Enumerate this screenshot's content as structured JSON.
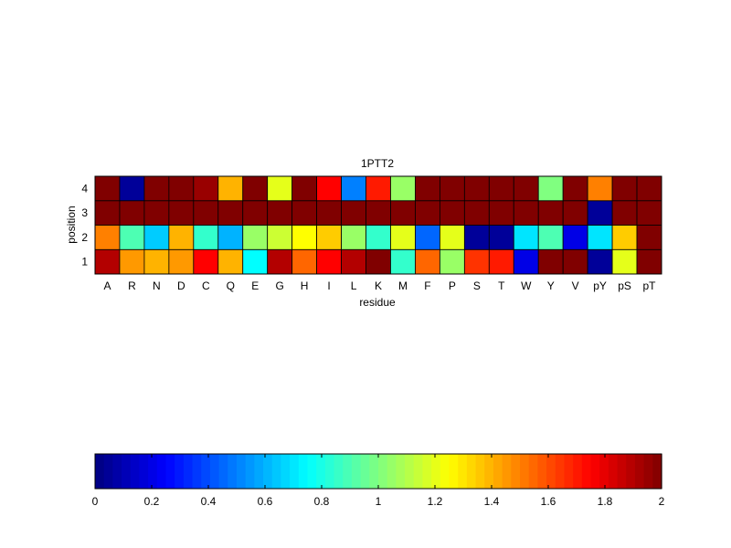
{
  "chart_data": {
    "type": "heatmap",
    "title": "1PTT2",
    "xlabel": "residue",
    "ylabel": "position",
    "x": [
      "A",
      "R",
      "N",
      "D",
      "C",
      "Q",
      "E",
      "G",
      "H",
      "I",
      "L",
      "K",
      "M",
      "F",
      "P",
      "S",
      "T",
      "W",
      "Y",
      "V",
      "pY",
      "pS",
      "pT"
    ],
    "y": [
      "1",
      "2",
      "3",
      "4"
    ],
    "values": [
      [
        1.9,
        1.45,
        1.4,
        1.45,
        1.75,
        1.4,
        0.75,
        1.9,
        1.55,
        1.75,
        1.9,
        2.0,
        0.85,
        1.55,
        1.05,
        1.65,
        1.7,
        0.2,
        2.0,
        2.0,
        0.05,
        1.2,
        2.0
      ],
      [
        1.5,
        0.9,
        0.65,
        1.4,
        0.85,
        0.6,
        1.05,
        1.15,
        1.25,
        1.35,
        1.05,
        0.85,
        1.2,
        0.45,
        1.2,
        0.05,
        0.05,
        0.7,
        0.9,
        0.2,
        0.7,
        1.35,
        2.0
      ],
      [
        2.0,
        2.0,
        2.0,
        2.0,
        2.0,
        2.0,
        2.0,
        2.0,
        2.0,
        2.0,
        2.0,
        2.0,
        2.0,
        2.0,
        2.0,
        2.0,
        2.0,
        2.0,
        2.0,
        2.0,
        0.05,
        2.0,
        2.0
      ],
      [
        2.0,
        0.05,
        2.0,
        2.0,
        1.95,
        1.4,
        2.0,
        1.2,
        2.0,
        1.75,
        0.5,
        1.7,
        1.05,
        2.0,
        2.0,
        2.0,
        2.0,
        2.0,
        1.0,
        2.0,
        1.5,
        2.0,
        2.0
      ]
    ],
    "colorbar": {
      "colormap": "jet",
      "range": [
        0,
        2
      ],
      "ticks": [
        "0",
        "0.2",
        "0.4",
        "0.6",
        "0.8",
        "1",
        "1.2",
        "1.4",
        "1.6",
        "1.8",
        "2"
      ]
    }
  }
}
